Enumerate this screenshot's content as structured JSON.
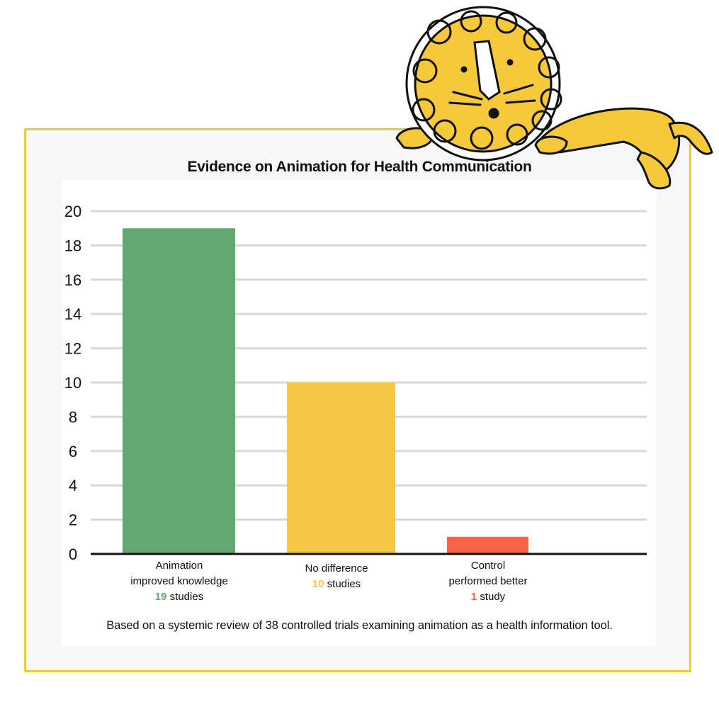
{
  "chart_data": {
    "type": "bar",
    "title": "Evidence on Animation for Health Communication",
    "categories": [
      "Animation improved knowledge",
      "No difference",
      "Control performed better"
    ],
    "values": [
      19,
      10,
      1
    ],
    "colors": [
      "#63a873",
      "#f7c646",
      "#f66445"
    ],
    "ylim": [
      0,
      20
    ],
    "yticks": [
      0,
      2,
      4,
      6,
      8,
      10,
      12,
      14,
      16,
      18,
      20
    ],
    "grid": true,
    "labels": [
      {
        "line1": "Animation",
        "line2": "improved knowledge",
        "count": "19",
        "unit": "studies"
      },
      {
        "line1": "",
        "line2": "No difference",
        "count": "10",
        "unit": "studies"
      },
      {
        "line1": "Control",
        "line2": "performed better",
        "count": "1",
        "unit": "study"
      }
    ],
    "footnote": "Based on a systemic review of 38 controlled trials examining animation as a health information tool."
  },
  "decoration": {
    "mascot": "lion-illustration",
    "mascot_color": "#f6c93a"
  }
}
